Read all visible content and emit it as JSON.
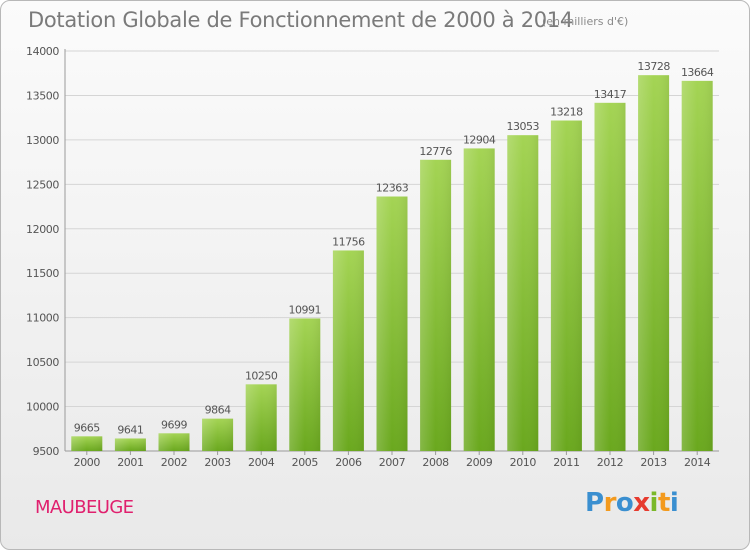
{
  "chart_data": {
    "type": "bar",
    "title": "Dotation Globale de Fonctionnement de 2000 à 2014",
    "subtitle": "(en milliers d'€)",
    "categories": [
      "2000",
      "2001",
      "2002",
      "2003",
      "2004",
      "2005",
      "2006",
      "2007",
      "2008",
      "2009",
      "2010",
      "2011",
      "2012",
      "2013",
      "2014"
    ],
    "values": [
      9665,
      9641,
      9699,
      9864,
      10250,
      10991,
      11756,
      12363,
      12776,
      12904,
      13053,
      13218,
      13417,
      13728,
      13664
    ],
    "ylim": [
      9500,
      14000
    ],
    "yticks": [
      9500,
      10000,
      10500,
      11000,
      11500,
      12000,
      12500,
      13000,
      13500,
      14000
    ],
    "xlabel": "",
    "ylabel": "",
    "grid": true,
    "colors": {
      "bar_light": "#a4d454",
      "bar_dark": "#6aa81e",
      "text": "#555555",
      "grid": "#d5d5d5"
    }
  },
  "footer": {
    "commune": "MAUBEUGE",
    "logo_text": "Proxiti"
  },
  "icons": {
    "logo": "proxiti-logo"
  }
}
